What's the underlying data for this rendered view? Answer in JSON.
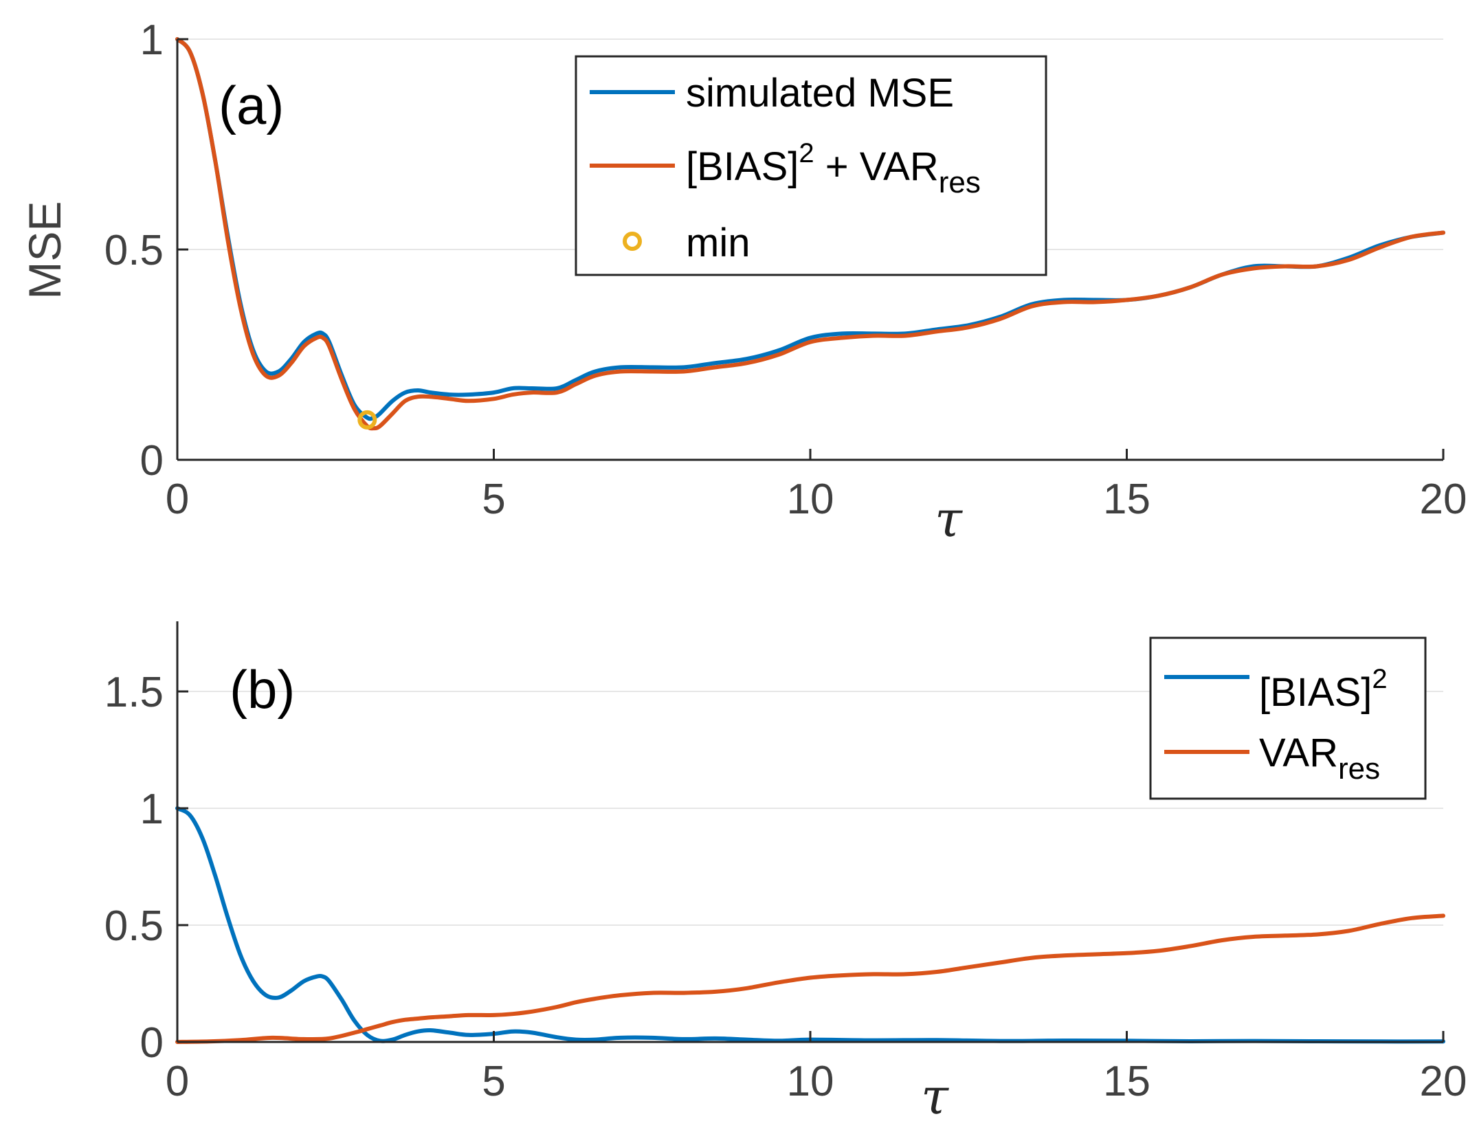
{
  "colors": {
    "blue": "#0072BD",
    "orange": "#D95319",
    "yellow": "#EDB120",
    "axis": "#262626",
    "grid": "#E6E6E6"
  },
  "chart_data": [
    {
      "id": "a",
      "type": "line",
      "panel_label": "(a)",
      "xlabel": "τ",
      "ylabel": "MSE",
      "xlim": [
        0,
        20
      ],
      "ylim": [
        0,
        1
      ],
      "xticks": [
        "0",
        "5",
        "10",
        "15",
        "20"
      ],
      "yticks": [
        "0",
        "0.5",
        "1"
      ],
      "ygrid": true,
      "legend_position": "top-center",
      "series": [
        {
          "name": "simulated MSE",
          "color": "blue",
          "x": [
            0,
            0.2,
            0.4,
            0.6,
            0.8,
            1.0,
            1.2,
            1.4,
            1.6,
            1.8,
            2.0,
            2.2,
            2.3,
            2.4,
            2.6,
            2.8,
            3.0,
            3.1,
            3.2,
            3.4,
            3.6,
            3.8,
            4.0,
            4.3,
            4.6,
            5.0,
            5.3,
            5.6,
            6.0,
            6.3,
            6.6,
            7.0,
            7.5,
            8.0,
            8.5,
            9.0,
            9.5,
            10.0,
            10.5,
            11.0,
            11.5,
            12.0,
            12.5,
            13.0,
            13.5,
            14.0,
            14.5,
            15.0,
            15.5,
            16.0,
            16.5,
            17.0,
            17.5,
            18.0,
            18.5,
            19.0,
            19.5,
            20.0
          ],
          "y": [
            1.0,
            0.97,
            0.87,
            0.71,
            0.53,
            0.37,
            0.26,
            0.21,
            0.21,
            0.24,
            0.28,
            0.3,
            0.3,
            0.28,
            0.2,
            0.13,
            0.1,
            0.1,
            0.11,
            0.14,
            0.16,
            0.165,
            0.16,
            0.155,
            0.155,
            0.16,
            0.17,
            0.17,
            0.17,
            0.19,
            0.21,
            0.22,
            0.22,
            0.22,
            0.23,
            0.24,
            0.26,
            0.29,
            0.3,
            0.3,
            0.3,
            0.31,
            0.32,
            0.34,
            0.37,
            0.38,
            0.38,
            0.38,
            0.39,
            0.41,
            0.44,
            0.46,
            0.46,
            0.46,
            0.48,
            0.51,
            0.53,
            0.54
          ]
        },
        {
          "name": "[BIAS]² + VARres",
          "color": "orange",
          "x": [
            0,
            0.2,
            0.4,
            0.6,
            0.8,
            1.0,
            1.2,
            1.4,
            1.6,
            1.8,
            2.0,
            2.2,
            2.3,
            2.4,
            2.6,
            2.8,
            3.0,
            3.1,
            3.2,
            3.4,
            3.6,
            3.8,
            4.0,
            4.3,
            4.6,
            5.0,
            5.3,
            5.6,
            6.0,
            6.3,
            6.6,
            7.0,
            7.5,
            8.0,
            8.5,
            9.0,
            9.5,
            10.0,
            10.5,
            11.0,
            11.5,
            12.0,
            12.5,
            13.0,
            13.5,
            14.0,
            14.5,
            15.0,
            15.5,
            16.0,
            16.5,
            17.0,
            17.5,
            18.0,
            18.5,
            19.0,
            19.5,
            20.0
          ],
          "y": [
            1.0,
            0.97,
            0.87,
            0.71,
            0.52,
            0.36,
            0.25,
            0.2,
            0.2,
            0.23,
            0.27,
            0.29,
            0.29,
            0.27,
            0.19,
            0.12,
            0.08,
            0.075,
            0.08,
            0.11,
            0.14,
            0.15,
            0.15,
            0.145,
            0.14,
            0.145,
            0.155,
            0.16,
            0.16,
            0.18,
            0.2,
            0.21,
            0.21,
            0.21,
            0.22,
            0.23,
            0.25,
            0.28,
            0.29,
            0.295,
            0.295,
            0.305,
            0.315,
            0.335,
            0.365,
            0.375,
            0.375,
            0.38,
            0.39,
            0.41,
            0.44,
            0.455,
            0.46,
            0.46,
            0.475,
            0.505,
            0.53,
            0.54
          ]
        }
      ],
      "markers": [
        {
          "name": "min",
          "color": "yellow",
          "x": 3.0,
          "y": 0.095,
          "shape": "circle-open"
        }
      ],
      "legend": [
        {
          "label": "simulated MSE",
          "color": "blue",
          "kind": "line"
        },
        {
          "label": "[BIAS]",
          "sup": "2",
          "tail": " + VAR",
          "sub": "res",
          "color": "orange",
          "kind": "line"
        },
        {
          "label": "min",
          "color": "yellow",
          "kind": "marker"
        }
      ]
    },
    {
      "id": "b",
      "type": "line",
      "panel_label": "(b)",
      "xlabel": "τ",
      "ylabel": "",
      "xlim": [
        0,
        20
      ],
      "ylim": [
        0,
        1.8
      ],
      "xticks": [
        "0",
        "5",
        "10",
        "15",
        "20"
      ],
      "yticks": [
        "0",
        "0.5",
        "1",
        "1.5"
      ],
      "ygrid": true,
      "legend_position": "top-right",
      "series": [
        {
          "name": "[BIAS]²",
          "color": "blue",
          "x": [
            0,
            0.2,
            0.4,
            0.6,
            0.8,
            1.0,
            1.2,
            1.4,
            1.6,
            1.8,
            2.0,
            2.2,
            2.3,
            2.4,
            2.6,
            2.8,
            3.0,
            3.2,
            3.4,
            3.6,
            3.8,
            4.0,
            4.3,
            4.6,
            5.0,
            5.3,
            5.6,
            6.0,
            6.3,
            6.6,
            7.0,
            7.5,
            8.0,
            8.5,
            9.0,
            9.5,
            10.0,
            11.0,
            12.0,
            13.0,
            14.0,
            15.0,
            16.0,
            17.0,
            18.0,
            19.0,
            20.0
          ],
          "y": [
            1.0,
            0.97,
            0.87,
            0.71,
            0.53,
            0.37,
            0.26,
            0.2,
            0.19,
            0.22,
            0.26,
            0.28,
            0.28,
            0.26,
            0.18,
            0.09,
            0.03,
            0.005,
            0.01,
            0.03,
            0.045,
            0.05,
            0.04,
            0.03,
            0.035,
            0.045,
            0.04,
            0.02,
            0.01,
            0.01,
            0.018,
            0.018,
            0.012,
            0.015,
            0.01,
            0.005,
            0.01,
            0.007,
            0.008,
            0.004,
            0.006,
            0.005,
            0.003,
            0.004,
            0.003,
            0.002,
            0.002
          ]
        },
        {
          "name": "VARres",
          "color": "orange",
          "x": [
            0,
            0.5,
            1.0,
            1.5,
            2.0,
            2.4,
            2.8,
            3.0,
            3.2,
            3.4,
            3.6,
            3.8,
            4.0,
            4.3,
            4.6,
            5.0,
            5.3,
            5.6,
            6.0,
            6.3,
            6.6,
            7.0,
            7.5,
            8.0,
            8.5,
            9.0,
            9.5,
            10.0,
            10.5,
            11.0,
            11.5,
            12.0,
            12.5,
            13.0,
            13.5,
            14.0,
            14.5,
            15.0,
            15.5,
            16.0,
            16.5,
            17.0,
            17.5,
            18.0,
            18.5,
            19.0,
            19.5,
            20.0
          ],
          "y": [
            0.0,
            0.002,
            0.008,
            0.018,
            0.012,
            0.015,
            0.04,
            0.055,
            0.07,
            0.085,
            0.095,
            0.1,
            0.105,
            0.11,
            0.115,
            0.115,
            0.12,
            0.13,
            0.15,
            0.17,
            0.185,
            0.2,
            0.21,
            0.21,
            0.215,
            0.23,
            0.255,
            0.275,
            0.285,
            0.29,
            0.29,
            0.3,
            0.32,
            0.34,
            0.36,
            0.37,
            0.375,
            0.38,
            0.39,
            0.41,
            0.435,
            0.45,
            0.455,
            0.46,
            0.475,
            0.505,
            0.53,
            0.54
          ]
        }
      ],
      "legend": [
        {
          "label": "[BIAS]",
          "sup": "2",
          "color": "blue",
          "kind": "line"
        },
        {
          "label": "VAR",
          "sub": "res",
          "color": "orange",
          "kind": "line"
        }
      ]
    }
  ]
}
